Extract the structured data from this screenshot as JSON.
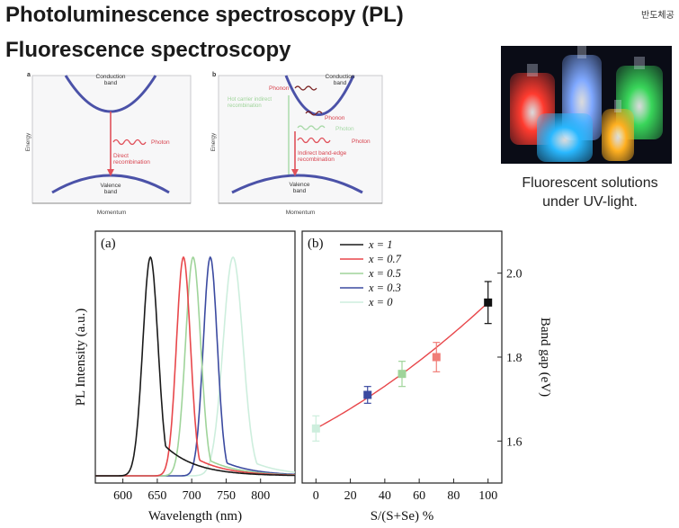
{
  "header": {
    "title_line1": "Photoluminescence spectroscopy (PL)",
    "title_line2": "Fluorescence spectroscopy",
    "corner_text": "반도체공"
  },
  "photo": {
    "caption_line1": "Fluorescent solutions",
    "caption_line2": "under UV-light.",
    "flask_colors": [
      "#ff3b2f",
      "#7fa8ff",
      "#39d65a",
      "#29b8ff",
      "#ffb020"
    ]
  },
  "diagram_a": {
    "panel_label": "a",
    "conduction_band": [
      "Conduction",
      "band"
    ],
    "valence_band": [
      "Valence",
      "band"
    ],
    "photon": "Photon",
    "process": [
      "Direct",
      "recombination"
    ],
    "energy_axis": "Energy",
    "momentum_axis": "Momentum"
  },
  "diagram_b": {
    "panel_label": "b",
    "conduction_band": [
      "Conduction",
      "band"
    ],
    "valence_band": [
      "Valence",
      "band"
    ],
    "phonon_top": "Phonon",
    "phonon_mid": "Phonon",
    "hot_carrier": [
      "Hot carrier indirect",
      "recombination"
    ],
    "photon_faded": "Photon",
    "photon": "Photon",
    "indirect": [
      "Indirect band-edge",
      "recombination"
    ],
    "energy_axis": "Energy",
    "momentum_axis": "Momentum"
  },
  "chart_data": [
    {
      "type": "line",
      "panel_label": "(a)",
      "xlabel": "Wavelength (nm)",
      "ylabel": "PL Intensity (a.u.)",
      "xlim": [
        560,
        850
      ],
      "xticks": [
        600,
        650,
        700,
        750,
        800
      ],
      "series": [
        {
          "name": "x = 1",
          "color": "#1a1a1a",
          "peak": 640,
          "fwhm": 26,
          "tail": 0.22
        },
        {
          "name": "x = 0.7",
          "color": "#e8474b",
          "peak": 688,
          "fwhm": 24,
          "tail": 0.12
        },
        {
          "name": "x = 0.5",
          "color": "#9fd49a",
          "peak": 702,
          "fwhm": 26,
          "tail": 0.12
        },
        {
          "name": "x = 0.3",
          "color": "#3b4aa0",
          "peak": 727,
          "fwhm": 24,
          "tail": 0.1
        },
        {
          "name": "x = 0",
          "color": "#cdeedd",
          "peak": 760,
          "fwhm": 34,
          "tail": 0.12
        }
      ]
    },
    {
      "type": "scatter",
      "panel_label": "(b)",
      "xlabel": "S/(S+Se) %",
      "ylabel": "Band gap (eV)",
      "xlim": [
        -8,
        108
      ],
      "ylim": [
        1.5,
        2.1
      ],
      "xticks": [
        0,
        20,
        40,
        60,
        80,
        100
      ],
      "yticks": [
        1.6,
        1.8,
        2.0
      ],
      "legend": [
        "x = 1",
        "x = 0.7",
        "x = 0.5",
        "x = 0.3",
        "x = 0"
      ],
      "legend_colors": [
        "#1a1a1a",
        "#e8474b",
        "#9fd49a",
        "#3b4aa0",
        "#cdeedd"
      ],
      "points": [
        {
          "x": 0,
          "y": 1.63,
          "err": 0.03,
          "color": "#cdeedd"
        },
        {
          "x": 30,
          "y": 1.71,
          "err": 0.02,
          "color": "#3b4aa0"
        },
        {
          "x": 50,
          "y": 1.76,
          "err": 0.03,
          "color": "#9fd49a"
        },
        {
          "x": 70,
          "y": 1.8,
          "err": 0.035,
          "color": "#f07e78"
        },
        {
          "x": 100,
          "y": 1.93,
          "err": 0.05,
          "color": "#111111"
        }
      ],
      "fit_color": "#e8474b"
    }
  ]
}
